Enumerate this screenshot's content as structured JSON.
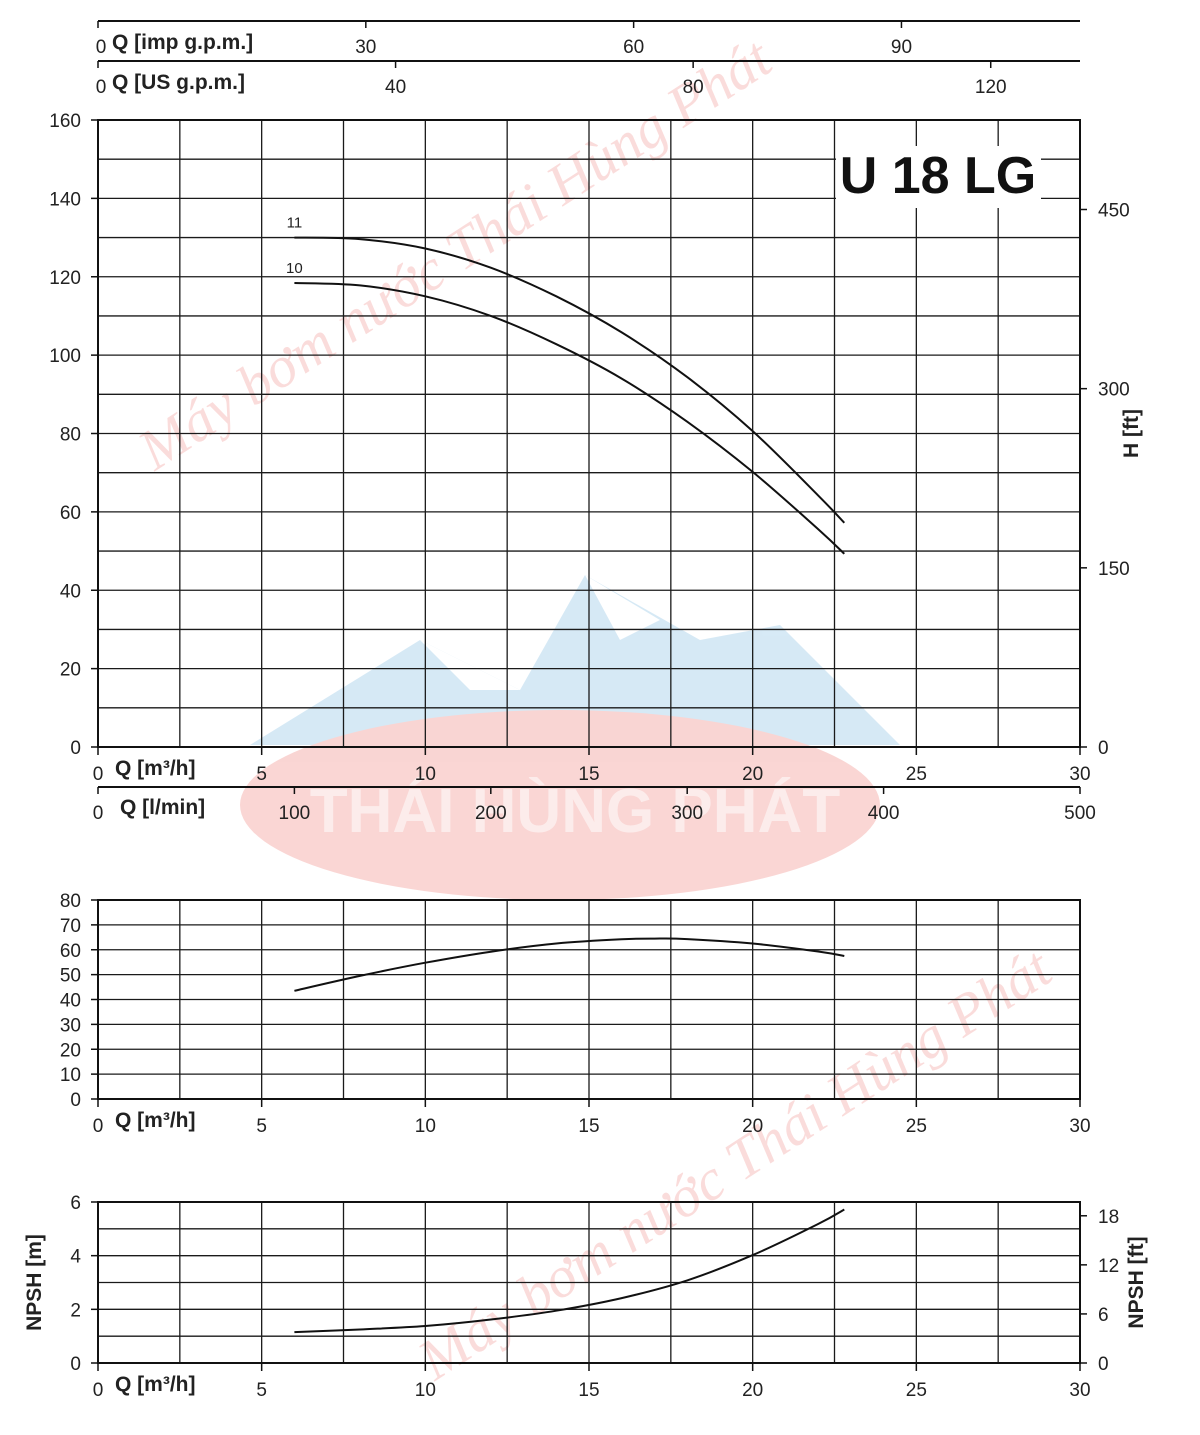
{
  "chart_data": [
    {
      "id": "head",
      "type": "line",
      "title": "U 18 LG",
      "x": {
        "label": "Q [m³/h]",
        "ticks": [
          "0",
          "5",
          "10",
          "15",
          "20",
          "25",
          "30"
        ],
        "range": [
          0,
          30
        ]
      },
      "y": {
        "label": "",
        "ticks": [
          "0",
          "20",
          "40",
          "60",
          "80",
          "100",
          "120",
          "140",
          "160"
        ],
        "range": [
          0,
          160
        ]
      },
      "y_right": {
        "label": "H [ft]",
        "ticks": [
          "0",
          "150",
          "300",
          "450"
        ],
        "values": [
          0,
          150,
          300,
          450
        ]
      },
      "top_axes": [
        {
          "label": "Q [imp g.p.m.]",
          "ticks": [
            "0",
            "30",
            "60",
            "90"
          ],
          "values": [
            0,
            30,
            60,
            90
          ],
          "max": 110
        },
        {
          "label": "Q [US g.p.m.]",
          "ticks": [
            "0",
            "40",
            "80",
            "120"
          ],
          "values": [
            0,
            40,
            80,
            120
          ],
          "max": 132
        }
      ],
      "bottom_axis_2": {
        "label": "Q [l/min]",
        "ticks": [
          "0",
          "100",
          "200",
          "300",
          "400",
          "500"
        ],
        "values": [
          0,
          100,
          200,
          300,
          400,
          500
        ],
        "max": 500
      },
      "grid": true,
      "series": [
        {
          "name": "11",
          "x": [
            6,
            8,
            10,
            12,
            14,
            16,
            18,
            20,
            22,
            22.8
          ],
          "y": [
            130,
            129.6,
            127.2,
            122.3,
            115,
            105.8,
            94.4,
            80.6,
            64.2,
            57.2
          ]
        },
        {
          "name": "10",
          "x": [
            6,
            8,
            10,
            12,
            14,
            16,
            18,
            20,
            22,
            22.8
          ],
          "y": [
            118.4,
            117.8,
            115,
            110,
            102.8,
            94,
            83,
            70.2,
            55.6,
            49.3
          ]
        }
      ]
    },
    {
      "id": "efficiency",
      "type": "line",
      "x": {
        "label": "Q [m³/h]",
        "ticks": [
          "0",
          "5",
          "10",
          "15",
          "20",
          "25",
          "30"
        ],
        "range": [
          0,
          30
        ]
      },
      "y": {
        "label": "",
        "ticks": [
          "0",
          "10",
          "20",
          "30",
          "40",
          "50",
          "60",
          "70",
          "80"
        ],
        "range": [
          0,
          80
        ]
      },
      "grid": true,
      "series": [
        {
          "x": [
            6,
            8,
            10,
            12,
            14,
            16,
            17,
            18,
            20,
            22,
            22.8
          ],
          "y": [
            43.5,
            49.5,
            54.8,
            59.2,
            62.5,
            64.2,
            64.5,
            64.3,
            62.5,
            59.3,
            57.5
          ]
        }
      ]
    },
    {
      "id": "npsh",
      "type": "line",
      "x": {
        "label": "Q [m³/h]",
        "ticks": [
          "0",
          "5",
          "10",
          "15",
          "20",
          "25",
          "30"
        ],
        "range": [
          0,
          30
        ]
      },
      "y": {
        "label": "NPSH [m]",
        "ticks": [
          "0",
          "2",
          "4",
          "6"
        ],
        "range": [
          0,
          6
        ]
      },
      "y_right": {
        "label": "NPSH [ft]",
        "ticks": [
          "0",
          "6",
          "12",
          "18"
        ],
        "values": [
          0,
          6,
          12,
          18
        ]
      },
      "grid": true,
      "series": [
        {
          "x": [
            6,
            8,
            10,
            12,
            14,
            16,
            18,
            20,
            22,
            22.8
          ],
          "y": [
            1.15,
            1.25,
            1.38,
            1.62,
            1.95,
            2.42,
            3.08,
            4.02,
            5.18,
            5.72
          ]
        }
      ]
    }
  ],
  "watermark": {
    "brand": "THÁI HÙNG PHÁT",
    "tagline": "Máy bơm nước Thái Hùng Phát",
    "logo_colors": {
      "mountain": "#4a9fd6",
      "ellipse": "#e8433c"
    }
  }
}
